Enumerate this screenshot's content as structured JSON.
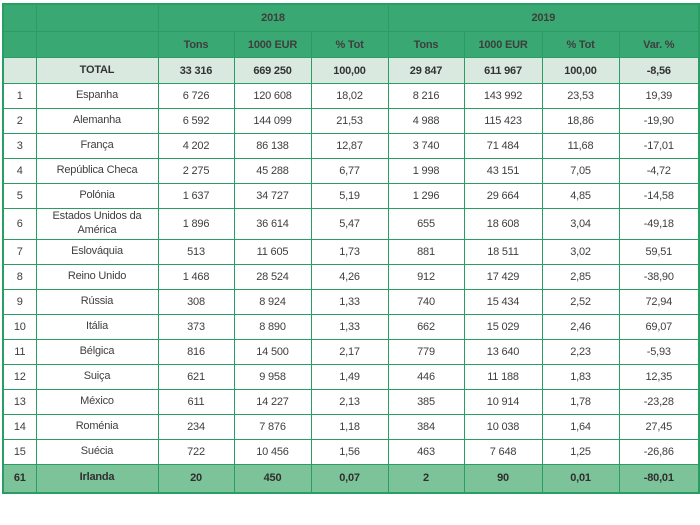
{
  "colors": {
    "header_green": "#3aa873",
    "border_green": "#2a9d64",
    "total_row_bg": "#d9e9df",
    "highlight_row_bg": "#7cc399",
    "header_text": "#ffffff",
    "body_text": "#3e3e3e"
  },
  "chart_data": {
    "type": "table",
    "year_groups": [
      {
        "label": "2018",
        "span": 3
      },
      {
        "label": "2019",
        "span": 4
      }
    ],
    "sub_headers": [
      "Tons",
      "1000 EUR",
      "% Tot",
      "Tons",
      "1000 EUR",
      "% Tot",
      "Var. %"
    ],
    "total_row": {
      "rank": "",
      "country": "TOTAL",
      "cells": [
        "33 316",
        "669 250",
        "100,00",
        "29 847",
        "611 967",
        "100,00",
        "-8,56"
      ]
    },
    "rows": [
      {
        "rank": "1",
        "country": "Espanha",
        "cells": [
          "6 726",
          "120 608",
          "18,02",
          "8 216",
          "143 992",
          "23,53",
          "19,39"
        ]
      },
      {
        "rank": "2",
        "country": "Alemanha",
        "cells": [
          "6 592",
          "144 099",
          "21,53",
          "4 988",
          "115 423",
          "18,86",
          "-19,90"
        ]
      },
      {
        "rank": "3",
        "country": "França",
        "cells": [
          "4 202",
          "86 138",
          "12,87",
          "3 740",
          "71 484",
          "11,68",
          "-17,01"
        ]
      },
      {
        "rank": "4",
        "country": "República Checa",
        "cells": [
          "2 275",
          "45 288",
          "6,77",
          "1 998",
          "43 151",
          "7,05",
          "-4,72"
        ]
      },
      {
        "rank": "5",
        "country": "Polónia",
        "cells": [
          "1 637",
          "34 727",
          "5,19",
          "1 296",
          "29 664",
          "4,85",
          "-14,58"
        ]
      },
      {
        "rank": "6",
        "country": "Estados Unidos da América",
        "cells": [
          "1 896",
          "36 614",
          "5,47",
          "655",
          "18 608",
          "3,04",
          "-49,18"
        ]
      },
      {
        "rank": "7",
        "country": "Eslováquia",
        "cells": [
          "513",
          "11 605",
          "1,73",
          "881",
          "18 511",
          "3,02",
          "59,51"
        ]
      },
      {
        "rank": "8",
        "country": "Reino Unido",
        "cells": [
          "1 468",
          "28 524",
          "4,26",
          "912",
          "17 429",
          "2,85",
          "-38,90"
        ]
      },
      {
        "rank": "9",
        "country": "Rússia",
        "cells": [
          "308",
          "8 924",
          "1,33",
          "740",
          "15 434",
          "2,52",
          "72,94"
        ]
      },
      {
        "rank": "10",
        "country": "Itália",
        "cells": [
          "373",
          "8 890",
          "1,33",
          "662",
          "15 029",
          "2,46",
          "69,07"
        ]
      },
      {
        "rank": "11",
        "country": "Bélgica",
        "cells": [
          "816",
          "14 500",
          "2,17",
          "779",
          "13 640",
          "2,23",
          "-5,93"
        ]
      },
      {
        "rank": "12",
        "country": "Suiça",
        "cells": [
          "621",
          "9 958",
          "1,49",
          "446",
          "11 188",
          "1,83",
          "12,35"
        ]
      },
      {
        "rank": "13",
        "country": "México",
        "cells": [
          "611",
          "14 227",
          "2,13",
          "385",
          "10 914",
          "1,78",
          "-23,28"
        ]
      },
      {
        "rank": "14",
        "country": "Roménia",
        "cells": [
          "234",
          "7 876",
          "1,18",
          "384",
          "10 038",
          "1,64",
          "27,45"
        ]
      },
      {
        "rank": "15",
        "country": "Suécia",
        "cells": [
          "722",
          "10 456",
          "1,56",
          "463",
          "7 648",
          "1,25",
          "-26,86"
        ]
      },
      {
        "rank": "61",
        "country": "Irlanda",
        "cells": [
          "20",
          "450",
          "0,07",
          "2",
          "90",
          "0,01",
          "-80,01"
        ],
        "highlight": true
      }
    ]
  }
}
